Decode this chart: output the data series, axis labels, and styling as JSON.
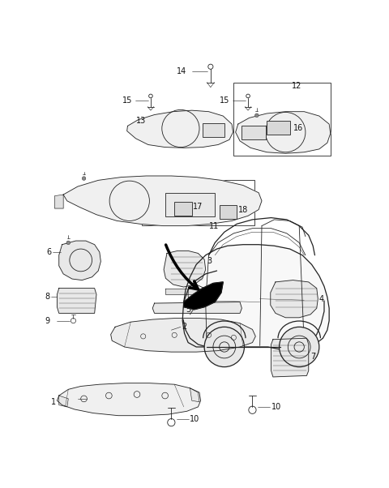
{
  "bg_color": "#ffffff",
  "line_color": "#222222",
  "label_color": "#111111",
  "figsize": [
    4.8,
    6.02
  ],
  "dpi": 100,
  "lw_thin": 0.6,
  "lw_med": 0.9,
  "lw_thick": 1.4,
  "font_size": 7.0,
  "xlim": [
    0,
    480
  ],
  "ylim": [
    0,
    602
  ]
}
